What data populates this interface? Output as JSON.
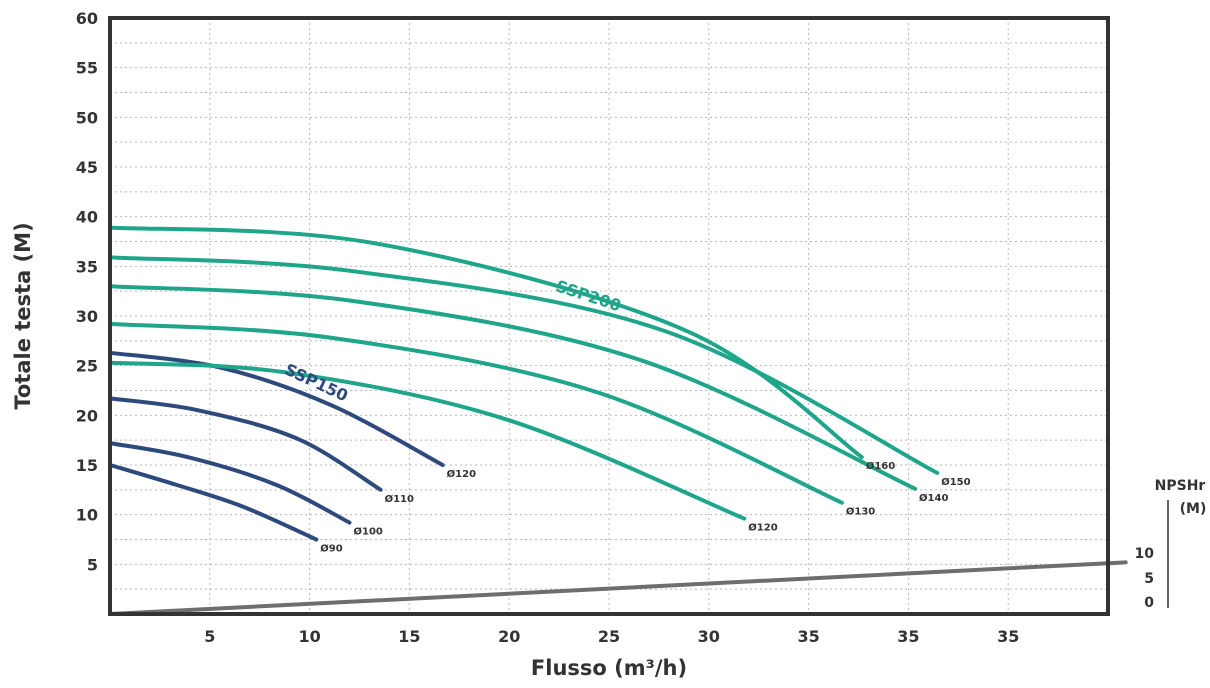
{
  "chart_data": {
    "type": "line",
    "xlabel": "Flusso (m³/h)",
    "ylabel": "Totale testa (M)",
    "xlim": [
      0,
      45
    ],
    "ylim": [
      0,
      60
    ],
    "x_tick_labels": [
      "5",
      "10",
      "15",
      "20",
      "25",
      "30",
      "35",
      "35",
      "35"
    ],
    "y_tick_labels": [
      "5",
      "10",
      "15",
      "20",
      "25",
      "30",
      "35",
      "40",
      "45",
      "50",
      "55",
      "60"
    ],
    "grid": true,
    "colors": {
      "SSP150": "#2e4a7d",
      "SSP200": "#1ea58a",
      "NPSHr": "#6e6e6e",
      "frame": "#333333"
    },
    "group_labels": [
      {
        "text": "SSP150",
        "group": "SSP150"
      },
      {
        "text": "SSP200",
        "group": "SSP200"
      }
    ],
    "series": [
      {
        "label": "Ø90",
        "group": "SSP150",
        "x": [
          0,
          3,
          6,
          9.3
        ],
        "y": [
          15,
          13,
          10.8,
          7.5
        ]
      },
      {
        "label": "Ø100",
        "group": "SSP150",
        "x": [
          0,
          3.5,
          7.5,
          10.8
        ],
        "y": [
          17.2,
          15.8,
          13,
          9.2
        ]
      },
      {
        "label": "Ø110",
        "group": "SSP150",
        "x": [
          0,
          4,
          8.5,
          12.2
        ],
        "y": [
          21.7,
          20.5,
          17.6,
          12.5
        ]
      },
      {
        "label": "Ø120",
        "group": "SSP150",
        "x": [
          0,
          5,
          10,
          15
        ],
        "y": [
          26.3,
          24.8,
          21,
          15
        ]
      },
      {
        "label": "Ø120",
        "group": "SSP200",
        "x": [
          0,
          8,
          18,
          28.6
        ],
        "y": [
          25.3,
          24.3,
          19.5,
          9.6
        ]
      },
      {
        "label": "Ø130",
        "group": "SSP200",
        "x": [
          0,
          10,
          22,
          33
        ],
        "y": [
          29.2,
          27.8,
          22.3,
          11.2
        ]
      },
      {
        "label": "Ø140",
        "group": "SSP200",
        "x": [
          0,
          11,
          24,
          36.3
        ],
        "y": [
          33,
          31.5,
          25.5,
          12.6
        ]
      },
      {
        "label": "Ø150",
        "group": "SSP200",
        "x": [
          0,
          11,
          25,
          37.3
        ],
        "y": [
          35.9,
          34.5,
          28.5,
          14.2
        ]
      },
      {
        "label": "Ø160",
        "group": "SSP200",
        "x": [
          0,
          12,
          26,
          33.9
        ],
        "y": [
          38.9,
          37.3,
          28.5,
          15.8
        ]
      }
    ],
    "npshr": {
      "title": "NPSHr",
      "unit": "(M)",
      "tick_labels": [
        "10",
        "5",
        "0"
      ],
      "x": [
        0,
        45.8
      ],
      "y": [
        0,
        5.2
      ]
    }
  }
}
